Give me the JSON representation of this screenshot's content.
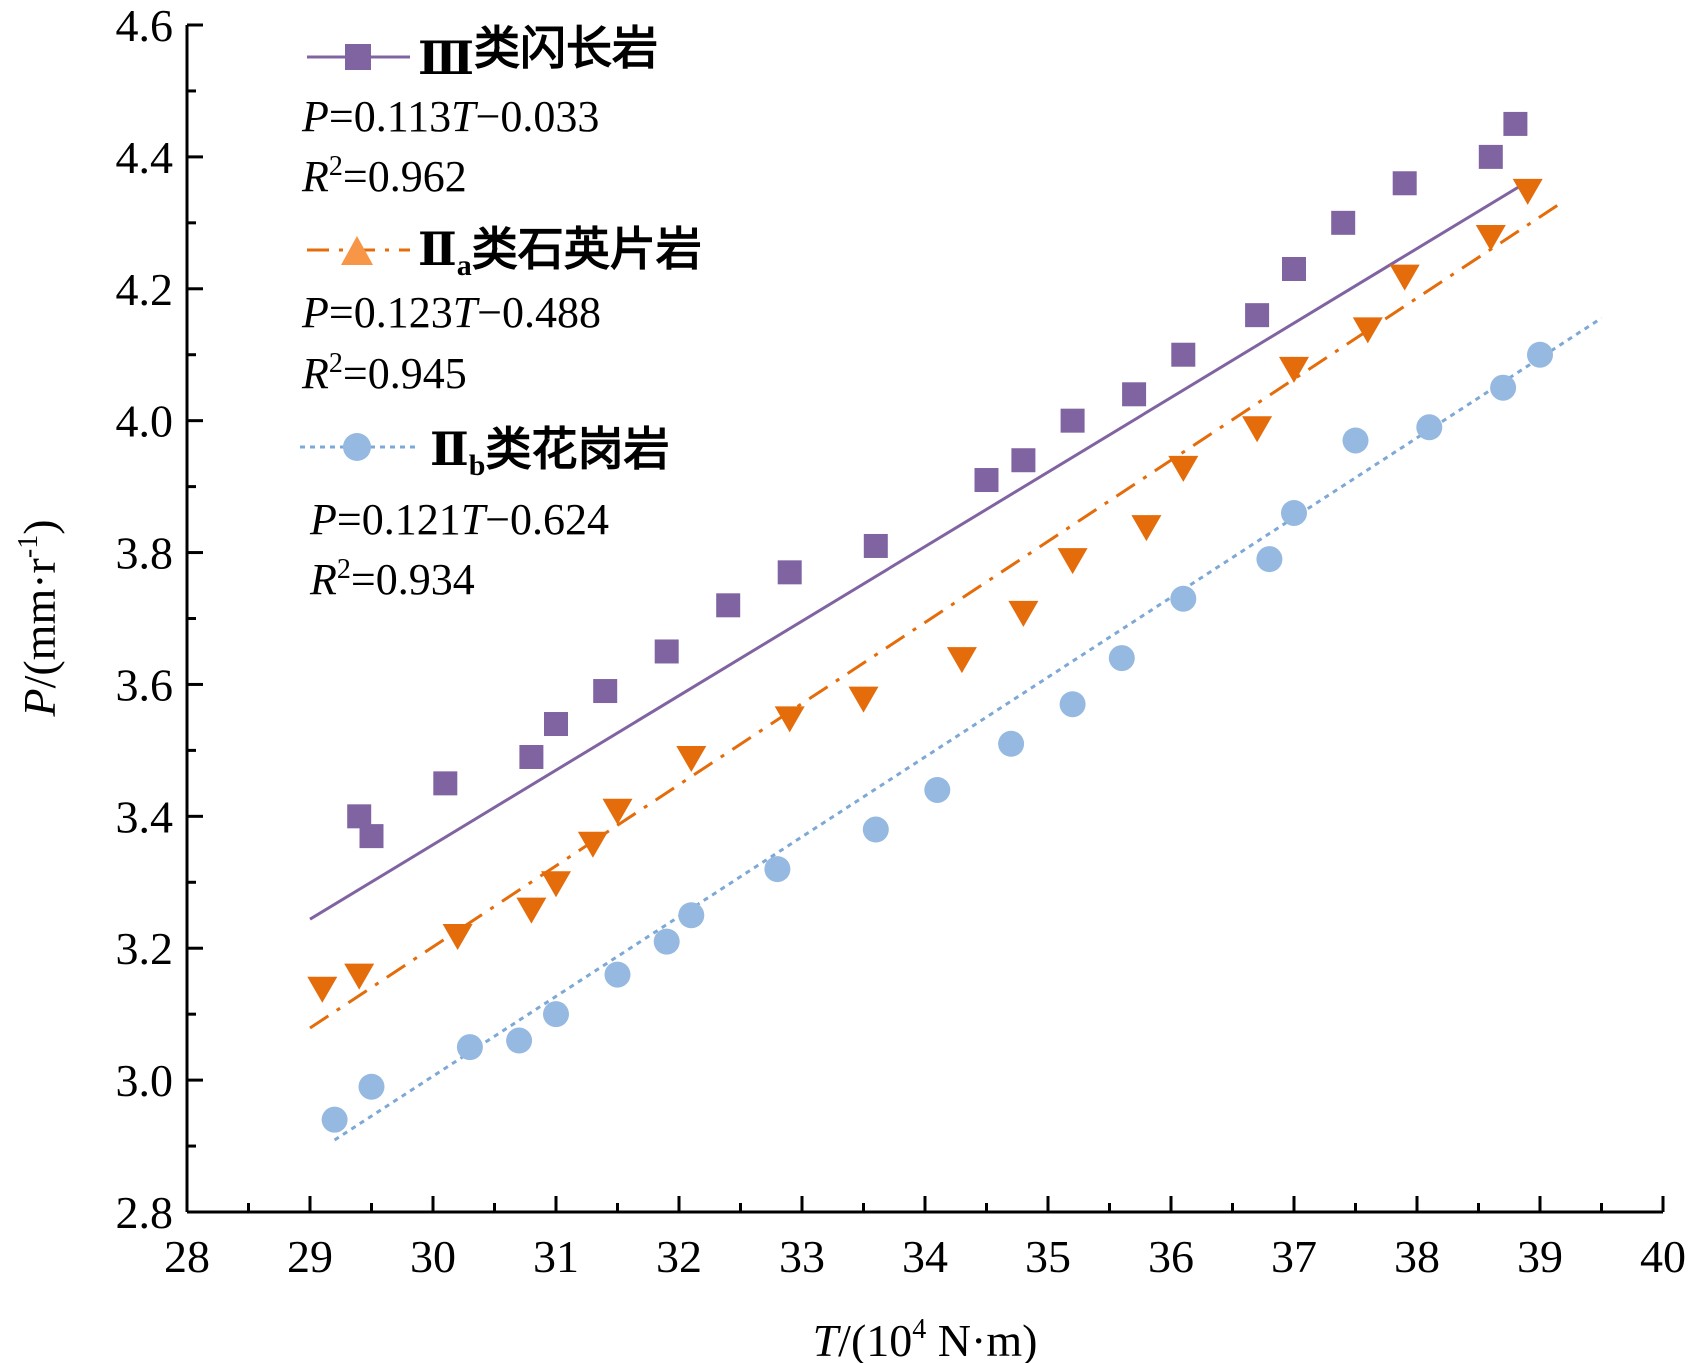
{
  "chart_data": {
    "type": "scatter",
    "xlabel": {
      "var": "T",
      "unit_pre": "/(10",
      "unit_sup": "4",
      "unit_post": " N·m)"
    },
    "ylabel": {
      "var": "P",
      "unit_pre": "/(mm·r",
      "unit_sup": "-1",
      "unit_post": ")"
    },
    "xlim": [
      28,
      40
    ],
    "ylim": [
      2.8,
      4.6
    ],
    "x_ticks": [
      "28",
      "29",
      "30",
      "31",
      "32",
      "33",
      "34",
      "35",
      "36",
      "37",
      "38",
      "39",
      "40"
    ],
    "y_ticks": [
      "2.8",
      "3.0",
      "3.2",
      "3.4",
      "3.6",
      "3.8",
      "4.0",
      "4.2",
      "4.4",
      "4.6"
    ],
    "grid": false,
    "legend_position": "top-left",
    "series": [
      {
        "key": "s1",
        "name": "Ⅲ类闪长岩",
        "name_parts": [
          "Ⅲ",
          "",
          "类闪长岩"
        ],
        "marker": "square",
        "legend_marker": "square",
        "line_style": "solid",
        "color": "#8064a2",
        "line_color": "#8064a2",
        "equation": {
          "var": "P",
          "mid": "=0.113",
          "var2": "T",
          "tail": "−0.033"
        },
        "r2": {
          "var": "R",
          "sup": "2",
          "tail": "=0.962"
        },
        "fit": {
          "slope": 0.113,
          "intercept": -0.033,
          "x_range": [
            29.0,
            38.9
          ]
        },
        "x": [
          29.4,
          29.5,
          30.1,
          30.8,
          31.0,
          31.4,
          31.9,
          32.4,
          32.9,
          33.6,
          34.5,
          34.8,
          35.2,
          35.7,
          36.1,
          36.7,
          37.0,
          37.4,
          37.9,
          38.6,
          38.8
        ],
        "y": [
          3.4,
          3.37,
          3.45,
          3.49,
          3.54,
          3.59,
          3.65,
          3.72,
          3.77,
          3.81,
          3.91,
          3.94,
          4.0,
          4.04,
          4.1,
          4.16,
          4.23,
          4.3,
          4.36,
          4.4,
          4.45
        ]
      },
      {
        "key": "s2",
        "name": "Ⅱa类石英片岩",
        "name_parts": [
          "Ⅱ",
          "a",
          "类石英片岩"
        ],
        "marker": "triangle-down",
        "legend_marker": "triangle-up",
        "line_style": "dashdot",
        "color": "#e46c0a",
        "line_color": "#e46c0a",
        "legend_marker_color": "#f79646",
        "equation": {
          "var": "P",
          "mid": "=0.123",
          "var2": "T",
          "tail": "−0.488"
        },
        "r2": {
          "var": "R",
          "sup": "2",
          "tail": "=0.945"
        },
        "fit": {
          "slope": 0.123,
          "intercept": -0.488,
          "x_range": [
            29.0,
            39.2
          ]
        },
        "x": [
          29.1,
          29.4,
          30.2,
          30.8,
          31.0,
          31.3,
          31.5,
          32.1,
          32.9,
          33.5,
          34.3,
          34.8,
          35.2,
          35.8,
          36.1,
          36.7,
          37.0,
          37.6,
          37.9,
          38.6,
          38.9
        ],
        "y": [
          3.14,
          3.16,
          3.22,
          3.26,
          3.3,
          3.36,
          3.41,
          3.49,
          3.55,
          3.58,
          3.64,
          3.71,
          3.79,
          3.84,
          3.93,
          3.99,
          4.08,
          4.14,
          4.22,
          4.28,
          4.35
        ]
      },
      {
        "key": "s3",
        "name": "Ⅱb类花岗岩",
        "name_parts": [
          "Ⅱ",
          "b",
          "类花岗岩"
        ],
        "marker": "circle",
        "legend_marker": "circle",
        "line_style": "dotted",
        "color": "#95b9e0",
        "line_color": "#7ea8d6",
        "equation": {
          "var": "P",
          "mid": "=0.121",
          "var2": "T",
          "tail": "−0.624"
        },
        "r2": {
          "var": "R",
          "sup": "2",
          "tail": "=0.934"
        },
        "fit": {
          "slope": 0.121,
          "intercept": -0.624,
          "x_range": [
            29.2,
            39.5
          ]
        },
        "x": [
          29.2,
          29.5,
          30.3,
          30.7,
          31.0,
          31.5,
          31.9,
          32.1,
          32.8,
          33.6,
          34.1,
          34.7,
          35.2,
          35.6,
          36.1,
          36.8,
          37.0,
          37.5,
          38.1,
          38.7,
          39.0
        ],
        "y": [
          2.94,
          2.99,
          3.05,
          3.06,
          3.1,
          3.16,
          3.21,
          3.25,
          3.32,
          3.38,
          3.44,
          3.51,
          3.57,
          3.64,
          3.73,
          3.79,
          3.86,
          3.97,
          3.99,
          4.05,
          4.1
        ]
      }
    ]
  }
}
